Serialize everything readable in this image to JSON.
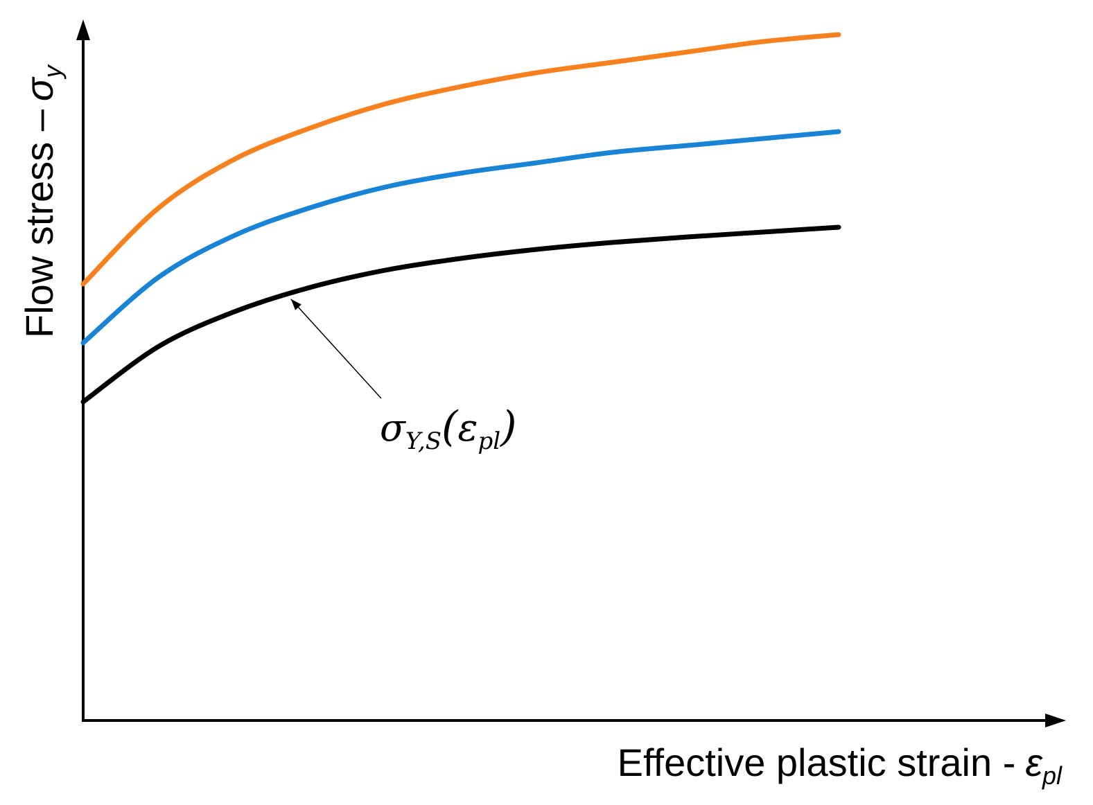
{
  "chart_data": {
    "type": "line",
    "xlabel": "Effective plastic strain -",
    "xlabel_symbol": "ε",
    "xlabel_sub": "pl",
    "ylabel": "Flow stress –",
    "ylabel_symbol": "σ",
    "ylabel_sub": "y",
    "xlim": [
      0,
      1
    ],
    "ylim": [
      0,
      1
    ],
    "ticks": "none",
    "grid": false,
    "legend": "none",
    "series": [
      {
        "color": "#f7811f",
        "x": [
          0,
          0.1,
          0.2,
          0.3,
          0.4,
          0.5,
          0.6,
          0.7,
          0.8,
          0.9,
          1.0
        ],
        "y": [
          0.63,
          0.74,
          0.81,
          0.855,
          0.89,
          0.915,
          0.935,
          0.95,
          0.965,
          0.98,
          0.99
        ]
      },
      {
        "color": "#1984d6",
        "x": [
          0,
          0.1,
          0.2,
          0.3,
          0.4,
          0.5,
          0.6,
          0.7,
          0.8,
          0.9,
          1.0
        ],
        "y": [
          0.545,
          0.64,
          0.7,
          0.74,
          0.77,
          0.79,
          0.805,
          0.82,
          0.83,
          0.84,
          0.85
        ]
      },
      {
        "color": "#000000",
        "x": [
          0,
          0.1,
          0.2,
          0.3,
          0.4,
          0.5,
          0.6,
          0.7,
          0.8,
          0.9,
          1.0
        ],
        "y": [
          0.46,
          0.54,
          0.59,
          0.625,
          0.65,
          0.667,
          0.68,
          0.69,
          0.698,
          0.705,
          0.712
        ]
      }
    ],
    "annotation": {
      "symbol": "σ",
      "sub": "Y,S",
      "paren_open": "(",
      "arg": "ε",
      "arg_sub": "pl",
      "paren_close": ")",
      "target_series": 2,
      "target_x": 0.275
    }
  }
}
